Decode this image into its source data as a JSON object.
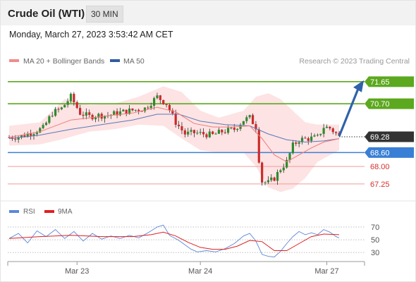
{
  "header": {
    "title": "Crude Oil (WTI)",
    "interval": "30 MIN"
  },
  "timestamp": "Monday, March 27, 2023 3:53:42 AM CET",
  "legend": [
    {
      "label": "MA 20 + Bollinger Bands",
      "color": "#f28b8b"
    },
    {
      "label": "MA 50",
      "color": "#2e5d9e"
    }
  ],
  "credit": "Research © 2023 Trading Central",
  "colors": {
    "candle_up": "#2e8b2e",
    "candle_down": "#cc2a2a",
    "bollinger_fill": "#fde3e3",
    "ma20": "#ef7a7a",
    "ma50": "#5b79b8",
    "resistance": "#5ca81e",
    "support_main": "#3a7fd6",
    "support_minor": "#f29a9a",
    "current": "#333333",
    "arrow": "#2f62a8",
    "rsi": "#5b87d9",
    "rsi_ma": "#e02020"
  },
  "chart_data": [
    {
      "type": "candlestick",
      "price_ylim": [
        66.7,
        72.1
      ],
      "x_ticks": [
        "Mar 23",
        "Mar 24",
        "Mar 27"
      ],
      "current_price": "69.28",
      "levels": [
        {
          "value": "71.65",
          "kind": "resistance",
          "style": "box"
        },
        {
          "value": "70.70",
          "kind": "resistance",
          "style": "box"
        },
        {
          "value": "68.60",
          "kind": "support",
          "style": "box"
        },
        {
          "value": "68.00",
          "kind": "support",
          "style": "text"
        },
        {
          "value": "67.25",
          "kind": "support",
          "style": "text"
        }
      ],
      "forecast_arrow": {
        "from": 69.3,
        "to": 71.65
      },
      "close_path": [
        [
          0,
          69.25
        ],
        [
          4,
          69.3
        ],
        [
          8,
          69.5
        ],
        [
          11,
          69.65
        ],
        [
          14,
          70.3
        ],
        [
          17,
          70.5
        ],
        [
          20,
          71.0
        ],
        [
          23,
          70.3
        ],
        [
          26,
          70.15
        ],
        [
          29,
          70.2
        ],
        [
          32,
          70.2
        ],
        [
          35,
          70.3
        ],
        [
          39,
          70.4
        ],
        [
          44,
          70.5
        ],
        [
          48,
          71.0
        ],
        [
          51,
          70.7
        ],
        [
          54,
          69.9
        ],
        [
          57,
          69.4
        ],
        [
          60,
          69.45
        ],
        [
          63,
          69.4
        ],
        [
          66,
          69.35
        ],
        [
          69,
          69.5
        ],
        [
          73,
          69.6
        ],
        [
          76,
          70.0
        ],
        [
          78,
          70.1
        ],
        [
          80,
          69.7
        ],
        [
          81,
          68.3
        ],
        [
          82,
          67.35
        ],
        [
          84,
          67.3
        ],
        [
          86,
          67.5
        ],
        [
          88,
          67.9
        ],
        [
          90,
          68.2
        ],
        [
          92,
          68.9
        ],
        [
          94,
          69.15
        ],
        [
          97,
          69.2
        ],
        [
          100,
          69.25
        ],
        [
          102,
          69.7
        ],
        [
          104,
          69.65
        ],
        [
          107,
          69.3
        ]
      ],
      "ma20": [
        [
          0,
          69.25
        ],
        [
          10,
          69.5
        ],
        [
          20,
          70.0
        ],
        [
          30,
          70.15
        ],
        [
          40,
          70.3
        ],
        [
          48,
          70.55
        ],
        [
          54,
          70.35
        ],
        [
          60,
          69.85
        ],
        [
          66,
          69.7
        ],
        [
          72,
          69.7
        ],
        [
          78,
          69.75
        ],
        [
          82,
          69.2
        ],
        [
          86,
          68.5
        ],
        [
          90,
          68.2
        ],
        [
          94,
          68.5
        ],
        [
          98,
          68.8
        ],
        [
          102,
          69.05
        ],
        [
          107,
          69.2
        ]
      ],
      "ma50": [
        [
          0,
          69.2
        ],
        [
          10,
          69.35
        ],
        [
          20,
          69.6
        ],
        [
          30,
          69.8
        ],
        [
          40,
          70.0
        ],
        [
          48,
          70.25
        ],
        [
          55,
          70.25
        ],
        [
          62,
          69.95
        ],
        [
          70,
          69.8
        ],
        [
          78,
          69.75
        ],
        [
          84,
          69.4
        ],
        [
          90,
          69.15
        ],
        [
          96,
          69.05
        ],
        [
          102,
          69.1
        ],
        [
          107,
          69.2
        ]
      ],
      "bollinger": {
        "upper": [
          [
            0,
            69.75
          ],
          [
            10,
            69.9
          ],
          [
            18,
            70.9
          ],
          [
            26,
            70.65
          ],
          [
            34,
            70.7
          ],
          [
            42,
            71.0
          ],
          [
            50,
            71.45
          ],
          [
            56,
            71.2
          ],
          [
            62,
            70.4
          ],
          [
            68,
            70.1
          ],
          [
            76,
            70.4
          ],
          [
            80,
            71.0
          ],
          [
            84,
            71.15
          ],
          [
            88,
            70.9
          ],
          [
            92,
            70.4
          ],
          [
            96,
            69.9
          ],
          [
            100,
            69.8
          ],
          [
            107,
            69.8
          ]
        ],
        "lower": [
          [
            0,
            68.9
          ],
          [
            10,
            68.95
          ],
          [
            18,
            69.2
          ],
          [
            26,
            69.5
          ],
          [
            34,
            69.6
          ],
          [
            42,
            69.8
          ],
          [
            50,
            69.75
          ],
          [
            56,
            69.2
          ],
          [
            62,
            68.7
          ],
          [
            68,
            68.6
          ],
          [
            76,
            68.6
          ],
          [
            80,
            68.0
          ],
          [
            84,
            67.1
          ],
          [
            88,
            66.9
          ],
          [
            92,
            67.05
          ],
          [
            96,
            67.5
          ],
          [
            100,
            68.2
          ],
          [
            107,
            68.7
          ]
        ]
      }
    },
    {
      "type": "line",
      "title": "",
      "series_legend": [
        "RSI",
        "9MA"
      ],
      "ylim": [
        18,
        80
      ],
      "y_ticks": [
        "70",
        "50",
        "30"
      ],
      "rsi": [
        [
          0,
          52
        ],
        [
          3,
          60
        ],
        [
          6,
          45
        ],
        [
          9,
          64
        ],
        [
          12,
          55
        ],
        [
          15,
          66
        ],
        [
          18,
          52
        ],
        [
          21,
          63
        ],
        [
          24,
          48
        ],
        [
          27,
          60
        ],
        [
          30,
          51
        ],
        [
          33,
          56
        ],
        [
          36,
          52
        ],
        [
          39,
          57
        ],
        [
          42,
          53
        ],
        [
          45,
          61
        ],
        [
          48,
          70
        ],
        [
          50,
          73
        ],
        [
          52,
          57
        ],
        [
          55,
          49
        ],
        [
          57,
          42
        ],
        [
          59,
          35
        ],
        [
          61,
          31
        ],
        [
          64,
          33
        ],
        [
          67,
          31
        ],
        [
          70,
          36
        ],
        [
          73,
          44
        ],
        [
          76,
          56
        ],
        [
          78,
          60
        ],
        [
          80,
          48
        ],
        [
          82,
          27
        ],
        [
          84,
          24
        ],
        [
          86,
          23
        ],
        [
          88,
          32
        ],
        [
          90,
          44
        ],
        [
          92,
          55
        ],
        [
          94,
          63
        ],
        [
          96,
          58
        ],
        [
          98,
          61
        ],
        [
          100,
          58
        ],
        [
          102,
          66
        ],
        [
          104,
          62
        ],
        [
          106,
          55
        ],
        [
          107,
          53
        ]
      ],
      "ma9": [
        [
          0,
          52
        ],
        [
          10,
          55
        ],
        [
          20,
          57
        ],
        [
          30,
          55
        ],
        [
          40,
          55
        ],
        [
          46,
          58
        ],
        [
          50,
          62
        ],
        [
          54,
          56
        ],
        [
          58,
          46
        ],
        [
          62,
          38
        ],
        [
          66,
          35
        ],
        [
          70,
          35
        ],
        [
          74,
          40
        ],
        [
          78,
          49
        ],
        [
          82,
          47
        ],
        [
          86,
          33
        ],
        [
          90,
          33
        ],
        [
          94,
          44
        ],
        [
          98,
          55
        ],
        [
          102,
          59
        ],
        [
          107,
          58
        ]
      ]
    }
  ]
}
